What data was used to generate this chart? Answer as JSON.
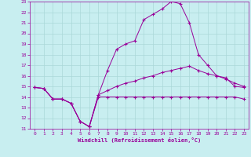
{
  "xlabel": "Windchill (Refroidissement éolien,°C)",
  "bg_color": "#c8eef0",
  "line_color": "#990099",
  "grid_color": "#aad8d8",
  "xlim": [
    -0.5,
    23.5
  ],
  "ylim": [
    11,
    23
  ],
  "xticks": [
    0,
    1,
    2,
    3,
    4,
    5,
    6,
    7,
    8,
    9,
    10,
    11,
    12,
    13,
    14,
    15,
    16,
    17,
    18,
    19,
    20,
    21,
    22,
    23
  ],
  "yticks": [
    11,
    12,
    13,
    14,
    15,
    16,
    17,
    18,
    19,
    20,
    21,
    22,
    23
  ],
  "line1_x": [
    0,
    1,
    2,
    3,
    4,
    5,
    6,
    7,
    8,
    9,
    10,
    11,
    12,
    13,
    14,
    15,
    16,
    17,
    18,
    19,
    20,
    21,
    22,
    23
  ],
  "line1_y": [
    14.9,
    14.8,
    13.8,
    13.8,
    13.4,
    11.7,
    11.2,
    14.2,
    16.5,
    18.5,
    19.0,
    19.3,
    21.3,
    21.8,
    22.3,
    23.0,
    22.8,
    21.0,
    18.0,
    17.0,
    16.0,
    15.8,
    15.0,
    14.9
  ],
  "line2_x": [
    0,
    1,
    2,
    3,
    4,
    5,
    6,
    7,
    8,
    9,
    10,
    11,
    12,
    13,
    14,
    15,
    16,
    17,
    18,
    19,
    20,
    21,
    22,
    23
  ],
  "line2_y": [
    14.9,
    14.8,
    13.8,
    13.8,
    13.4,
    11.7,
    11.2,
    14.0,
    14.0,
    14.0,
    14.0,
    14.0,
    14.0,
    14.0,
    14.0,
    14.0,
    14.0,
    14.0,
    14.0,
    14.0,
    14.0,
    14.0,
    14.0,
    13.8
  ],
  "line3_x": [
    0,
    1,
    2,
    3,
    4,
    5,
    6,
    7,
    8,
    9,
    10,
    11,
    12,
    13,
    14,
    15,
    16,
    17,
    18,
    19,
    20,
    21,
    22,
    23
  ],
  "line3_y": [
    14.9,
    14.8,
    13.8,
    13.8,
    13.4,
    11.7,
    11.2,
    14.2,
    14.6,
    15.0,
    15.3,
    15.5,
    15.8,
    16.0,
    16.3,
    16.5,
    16.7,
    16.9,
    16.5,
    16.2,
    16.0,
    15.7,
    15.3,
    15.0
  ]
}
